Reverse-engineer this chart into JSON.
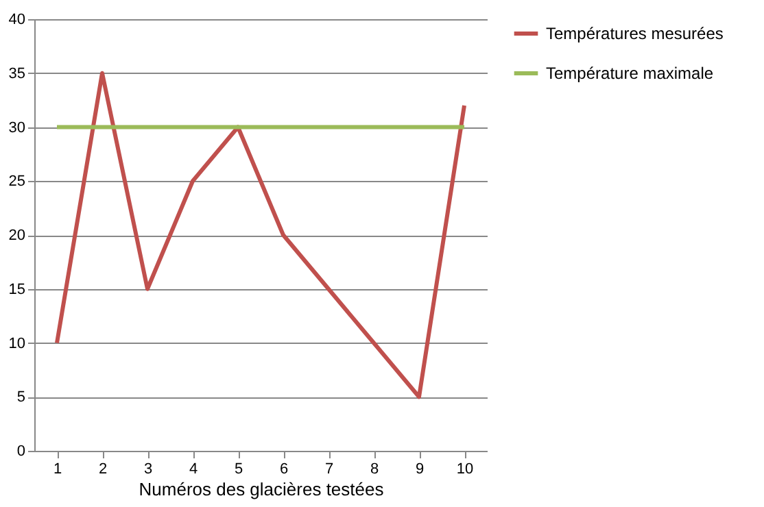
{
  "chart_data": {
    "type": "line",
    "xlabel": "Numéros des glacières testées",
    "categories": [
      "1",
      "2",
      "3",
      "4",
      "5",
      "6",
      "7",
      "8",
      "9",
      "10"
    ],
    "series": [
      {
        "name": "Températures mesurées",
        "color": "#c0504d",
        "values": [
          10,
          35,
          15,
          25,
          30,
          20,
          15,
          10,
          5,
          32
        ]
      },
      {
        "name": "Température maximale",
        "color": "#9bbb59",
        "values": [
          30,
          30,
          30,
          30,
          30,
          30,
          30,
          30,
          30,
          30
        ]
      }
    ],
    "ylim": [
      0,
      40
    ],
    "yticks": [
      0,
      5,
      10,
      15,
      20,
      25,
      30,
      35,
      40
    ],
    "grid": "y",
    "legend": "right",
    "marker": "none",
    "line_style": "solid"
  }
}
